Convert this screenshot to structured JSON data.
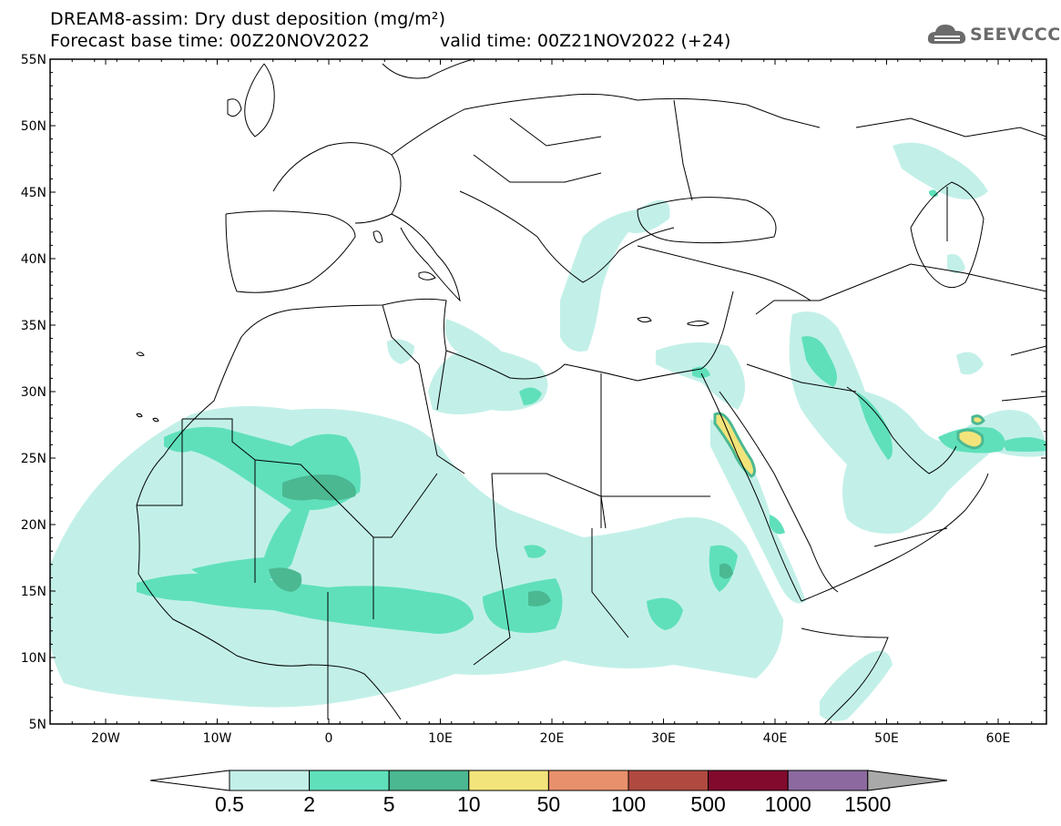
{
  "header": {
    "title": "DREAM8-assim: Dry dust deposition (mg/m²)",
    "base_time": "Forecast base time: 00Z20NOV2022",
    "valid_time": "valid time: 00Z21NOV2022 (+24)",
    "logo_text": "SEEVCCC"
  },
  "axes": {
    "lat_labels": [
      "55N",
      "50N",
      "45N",
      "40N",
      "35N",
      "30N",
      "25N",
      "20N",
      "15N",
      "10N",
      "5N"
    ],
    "lon_labels": [
      "20W",
      "10W",
      "0",
      "10E",
      "20E",
      "30E",
      "40E",
      "50E",
      "60E"
    ]
  },
  "colorbar": {
    "levels": [
      "0.5",
      "2",
      "5",
      "10",
      "50",
      "100",
      "500",
      "1000",
      "1500"
    ],
    "colors": [
      "#c2f0e8",
      "#5fe0bb",
      "#4bb892",
      "#f2e47a",
      "#e8906c",
      "#b04a40",
      "#820a2d",
      "#8c6aa0"
    ],
    "under_color": "#ffffff",
    "over_color": "#a9a9a9"
  },
  "colors": {
    "lightest": "#c2f0e8",
    "light": "#5fe0bb",
    "medium": "#4bb892",
    "yellow": "#f2e47a",
    "border": "#000000"
  }
}
